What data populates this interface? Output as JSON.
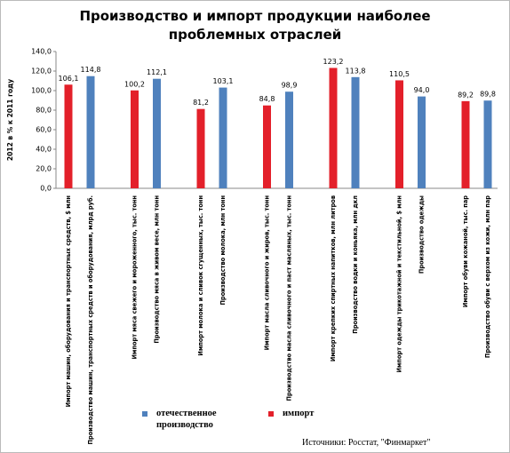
{
  "chart_data": {
    "type": "bar",
    "title": "Производство и импорт продукции наиболее проблемных отраслей",
    "ylabel": "2012 в % к 2011 году",
    "source": "Источники: Росстат, \"Финмаркет\"",
    "categories": [
      "Импорт машин, оборудования и транспортных средств, $ млн",
      "Производство машин, транспортных средств и оборудования, млрд руб.",
      "Импорт мяса свежего и мороженного, тыс. тонн",
      "Производство мяса в живом весе, млн тонн",
      "Импорт молока и сливок сгущенных, тыс. тонн",
      "Производство молока, млн тонн",
      "Импорт масла сливочного и жиров, тыс. тонн",
      "Производство масла сливочного и паст масляных, тыс. тонн",
      "Импорт крепких спиртных напитков, млн литров",
      "Производство водки и коньяка, млн дкл",
      "Импорт одежды трикотажной и текстильной, $ млн",
      "Производство одежды",
      "Импорт обуви кожаной, тыс. пар",
      "Производство обуви с верхом из кожи, млн пар"
    ],
    "series": [
      {
        "name": "отечественное производство",
        "color": "#4f81bd",
        "values": [
          null,
          114.8,
          null,
          112.1,
          null,
          103.1,
          null,
          98.9,
          null,
          113.8,
          null,
          94.0,
          null,
          89.8
        ],
        "value_labels": [
          null,
          "114,8",
          null,
          "112,1",
          null,
          "103,1",
          null,
          "98,9",
          null,
          "113,8",
          null,
          "94,0",
          null,
          "89,8"
        ]
      },
      {
        "name": "импорт",
        "color": "#e3202a",
        "values": [
          106.1,
          null,
          100.2,
          null,
          81.2,
          null,
          84.8,
          null,
          123.2,
          null,
          110.5,
          null,
          89.2,
          null
        ],
        "value_labels": [
          "106,1",
          null,
          "100,2",
          null,
          "81,2",
          null,
          "84,8",
          null,
          "123,2",
          null,
          "110,5",
          null,
          "89,2",
          null
        ]
      }
    ],
    "ylim": [
      0,
      140
    ],
    "yticks": [
      {
        "value": 0,
        "label": "0,0"
      },
      {
        "value": 20,
        "label": "20,0"
      },
      {
        "value": 40,
        "label": "40,0"
      },
      {
        "value": 60,
        "label": "60,0"
      },
      {
        "value": 80,
        "label": "80,0"
      },
      {
        "value": 100,
        "label": "100,0"
      },
      {
        "value": 120,
        "label": "120,0"
      },
      {
        "value": 140,
        "label": "140,0"
      }
    ],
    "grid": false
  }
}
